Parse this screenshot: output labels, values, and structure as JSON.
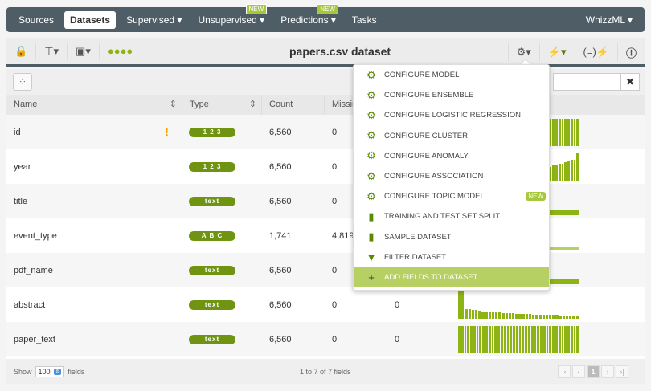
{
  "nav": {
    "items": [
      {
        "label": "Sources"
      },
      {
        "label": "Datasets"
      },
      {
        "label": "Supervised ▾"
      },
      {
        "label": "Unsupervised ▾",
        "badge": "NEW"
      },
      {
        "label": "Predictions ▾",
        "badge": "NEW"
      },
      {
        "label": "Tasks"
      }
    ],
    "right": "WhizzML ▾"
  },
  "toolbar": {
    "title": "papers.csv dataset"
  },
  "table": {
    "headers": [
      "Name",
      "Type",
      "Count",
      "Missing"
    ],
    "rows": [
      {
        "name": "id",
        "type": "1 2 3",
        "count": "6,560",
        "missing": "0",
        "errors": "",
        "warn": "!",
        "hist": [
          1,
          1,
          1,
          1,
          1,
          1,
          1,
          1,
          1,
          1,
          1,
          1,
          1,
          1,
          1,
          1,
          1,
          1,
          1,
          1,
          1,
          1,
          1,
          1,
          1,
          1,
          1,
          1,
          1,
          1,
          1,
          1,
          1,
          1,
          1,
          1,
          1,
          1,
          1,
          1
        ]
      },
      {
        "name": "year",
        "type": "1 2 3",
        "count": "6,560",
        "missing": "0",
        "errors": "",
        "hist": [
          0.1,
          0.1,
          0.1,
          0.1,
          0.1,
          0.1,
          0.1,
          0.15,
          0.15,
          0.15,
          0.2,
          0.2,
          0.2,
          0.25,
          0.25,
          0.25,
          0.3,
          0.3,
          0.3,
          0.3,
          0.35,
          0.35,
          0.35,
          0.4,
          0.4,
          0.4,
          0.45,
          0.45,
          0.5,
          0.5,
          0.5,
          0.55,
          0.55,
          0.6,
          0.6,
          0.65,
          0.7,
          0.75,
          0.75,
          1
        ]
      },
      {
        "name": "title",
        "type": "text",
        "count": "6,560",
        "missing": "0",
        "errors": "",
        "hist": [
          0.15,
          0.15,
          0.15,
          0.15,
          0.15,
          0.15,
          0.15,
          0.15,
          0.15,
          0.15,
          0.15,
          0.15,
          0.15,
          0.15,
          0.15,
          0.15,
          0.15,
          0.15,
          0.15,
          0.15,
          0.15,
          0.15,
          0.15,
          0.15,
          0.15,
          0.15,
          0.15,
          0.15,
          0.15,
          0.15
        ]
      },
      {
        "name": "event_type",
        "type": "A B C",
        "count": "1,741",
        "missing": "4,819",
        "errors": "",
        "hist": [
          0.1
        ]
      },
      {
        "name": "pdf_name",
        "type": "text",
        "count": "6,560",
        "missing": "0",
        "errors": "",
        "hist": [
          0.15,
          0.15,
          0.15,
          0.15,
          0.15,
          0.15,
          0.15,
          0.15,
          0.15,
          0.15,
          0.15,
          0.15,
          0.15,
          0.15,
          0.15,
          0.15,
          0.15,
          0.15,
          0.15,
          0.15,
          0.15,
          0.15,
          0.15,
          0.15,
          0.15,
          0.15,
          0.15,
          0.15,
          0.15,
          0.15
        ]
      },
      {
        "name": "abstract",
        "type": "text",
        "count": "6,560",
        "missing": "0",
        "errors": "0",
        "hist": [
          1,
          1,
          0.35,
          0.33,
          0.3,
          0.3,
          0.28,
          0.26,
          0.25,
          0.24,
          0.23,
          0.22,
          0.21,
          0.2,
          0.2,
          0.19,
          0.18,
          0.17,
          0.16,
          0.16,
          0.15,
          0.15,
          0.14,
          0.14,
          0.13,
          0.13,
          0.13,
          0.12,
          0.12,
          0.12,
          0.11,
          0.11,
          0.11,
          0.1,
          0.1,
          0.1
        ]
      },
      {
        "name": "paper_text",
        "type": "text",
        "count": "6,560",
        "missing": "0",
        "errors": "0",
        "hist": [
          1,
          1,
          1,
          1,
          1,
          1,
          1,
          1,
          1,
          1,
          1,
          1,
          1,
          1,
          1,
          1,
          1,
          1,
          1,
          1,
          1,
          1,
          1,
          1,
          1,
          1,
          1,
          1,
          1,
          1,
          1,
          1,
          1,
          1,
          1,
          1,
          1,
          1,
          1,
          1
        ]
      }
    ]
  },
  "footer": {
    "show": "Show",
    "page_size": "100",
    "fields": "fields",
    "range": "1 to 7 of 7 fields",
    "page": "1"
  },
  "menu": {
    "items": [
      {
        "label": "CONFIGURE MODEL",
        "icon": "model-icon",
        "glyph": "⚙"
      },
      {
        "label": "CONFIGURE ENSEMBLE",
        "icon": "ensemble-icon",
        "glyph": "⚙"
      },
      {
        "label": "CONFIGURE LOGISTIC REGRESSION",
        "icon": "logistic-icon",
        "glyph": "⚙"
      },
      {
        "label": "CONFIGURE CLUSTER",
        "icon": "cluster-icon",
        "glyph": "⚙"
      },
      {
        "label": "CONFIGURE ANOMALY",
        "icon": "anomaly-icon",
        "glyph": "⚙"
      },
      {
        "label": "CONFIGURE ASSOCIATION",
        "icon": "association-icon",
        "glyph": "⚙"
      },
      {
        "label": "CONFIGURE TOPIC MODEL",
        "icon": "topic-model-icon",
        "glyph": "⚙",
        "badge": "NEW"
      },
      {
        "label": "TRAINING AND TEST SET SPLIT",
        "icon": "split-icon",
        "glyph": "▮"
      },
      {
        "label": "SAMPLE DATASET",
        "icon": "sample-icon",
        "glyph": "▮"
      },
      {
        "label": "FILTER DATASET",
        "icon": "filter-icon",
        "glyph": "▼"
      },
      {
        "label": "ADD FIELDS TO DATASET",
        "icon": "add-fields-icon",
        "glyph": "+",
        "active": true
      }
    ]
  },
  "colors": {
    "nav": "#4f5e66",
    "accent": "#8db414",
    "highlight": "#b6d064"
  }
}
